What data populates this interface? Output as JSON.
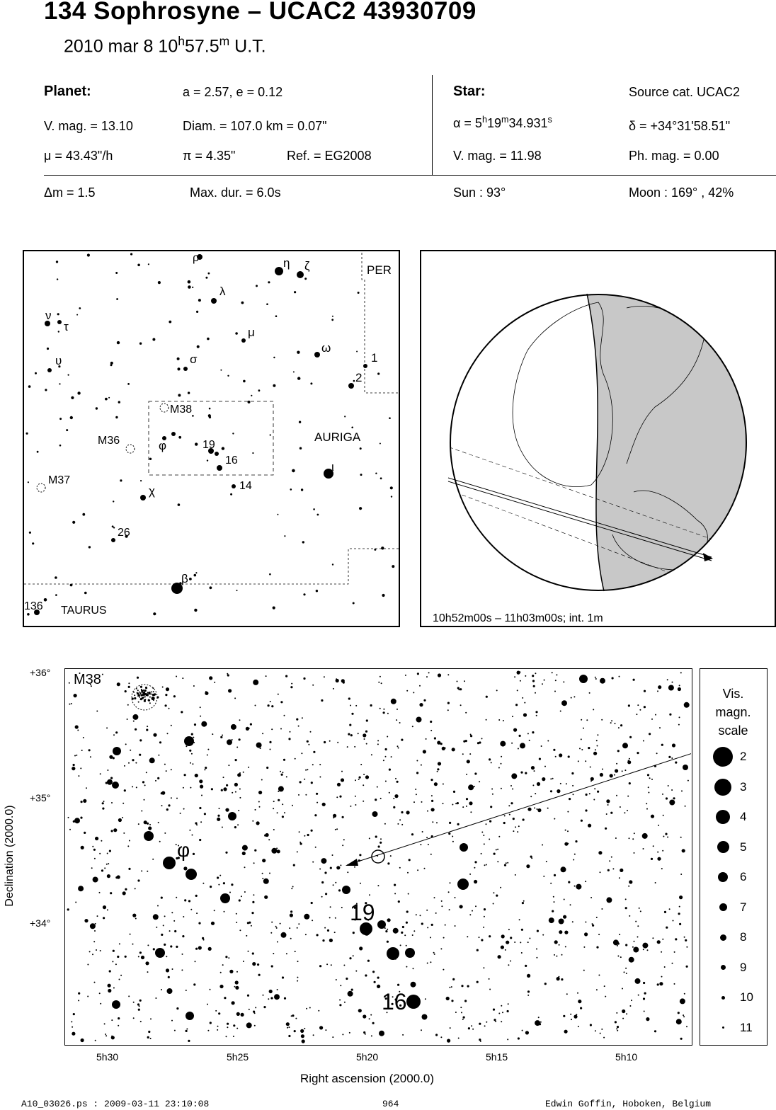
{
  "title": "134 Sophrosyne  –  UCAC2 43930709",
  "date": {
    "prefix": "2010 mar  8  10",
    "h_sup": "h",
    "mid": "57.5",
    "m_sup": "m",
    "suffix": " U.T."
  },
  "planet": {
    "heading": "Planet:",
    "orbit": "a = 2.57, e = 0.12",
    "vmag": "V. mag. = 13.10",
    "diam": "Diam. = 107.0 km = 0.07\"",
    "mu": "μ =  43.43\"/h",
    "pi": "π =  4.35\"",
    "ref": "Ref. = EG2008"
  },
  "star": {
    "heading": "Star:",
    "source": "Source cat.  UCAC2",
    "alpha_prefix": "α =  5",
    "alpha_h": "h",
    "alpha_mid": "19",
    "alpha_m": "m",
    "alpha_sec": "34.931",
    "alpha_s": "s",
    "delta": "δ = +34°31'58.51\"",
    "vmag": "V. mag. = 11.98",
    "phmag": "Ph. mag. =  0.00"
  },
  "event": {
    "dm": "Δm = 1.5",
    "maxdur": "Max. dur. = 6.0s",
    "sun": "Sun :  93°",
    "moon": "Moon : 169° , 42%"
  },
  "finder": {
    "labels": [
      "ρ",
      "η",
      "ζ",
      "PER",
      "λ",
      "ν",
      "τ",
      "μ",
      "υ",
      "ω",
      "1",
      "2",
      "σ",
      "M38",
      "M36",
      "φ",
      "19",
      "16",
      "AURIGA",
      "ι",
      "M37",
      "14",
      "χ",
      "26",
      "β",
      "136",
      "TAURUS"
    ]
  },
  "globe": {
    "caption": "10h52m00s – 11h03m00s; int.  1m"
  },
  "detail": {
    "dec_ticks": [
      "+36°",
      "+35°",
      "+34°"
    ],
    "ra_ticks": [
      "5h30",
      "5h25",
      "5h20",
      "5h15",
      "5h10"
    ],
    "ylabel": "Declination (2000.0)",
    "xlabel": "Right ascension (2000.0)",
    "labels": {
      "m38": "M38",
      "phi": "φ",
      "s19": "19",
      "s16": "16"
    }
  },
  "legend": {
    "title": [
      "Vis.",
      "magn.",
      "scale"
    ],
    "items": [
      "2",
      "3",
      "4",
      "5",
      "6",
      "7",
      "8",
      "9",
      "10",
      "11"
    ]
  },
  "footer": {
    "left": "A10_03026.ps : 2009-03-11 23:10:08",
    "center": "964",
    "right": "Edwin Goffin, Hoboken, Belgium"
  }
}
